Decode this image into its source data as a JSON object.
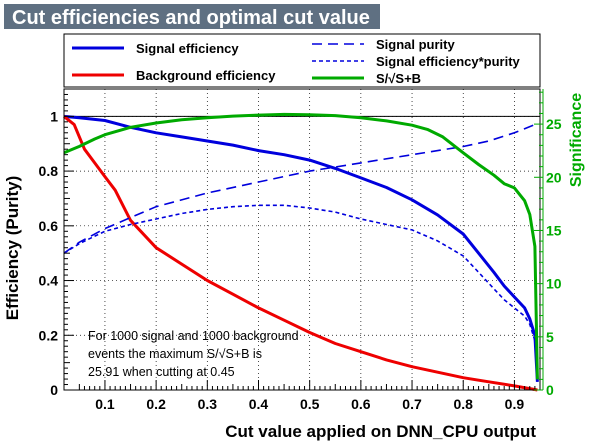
{
  "chart_data": {
    "type": "line",
    "title": "Cut efficiencies and optimal cut value",
    "xlabel": "Cut value applied on DNN_CPU output",
    "ylabel": "Efficiency (Purity)",
    "y2label": "Significance",
    "xlim": [
      0.02,
      0.95
    ],
    "ylim": [
      0,
      1.1
    ],
    "y2lim": [
      0,
      28.3
    ],
    "grid": true,
    "x_ticks": [
      0.1,
      0.2,
      0.3,
      0.4,
      0.5,
      0.6,
      0.7,
      0.8,
      0.9
    ],
    "x_tick_labels": [
      "0.1",
      "0.2",
      "0.3",
      "0.4",
      "0.5",
      "0.6",
      "0.7",
      "0.8",
      "0.9"
    ],
    "y_ticks": [
      0,
      0.2,
      0.4,
      0.6,
      0.8,
      1
    ],
    "y_tick_labels": [
      "0",
      "0.2",
      "0.4",
      "0.6",
      "0.8",
      "1"
    ],
    "y2_ticks": [
      0,
      5,
      10,
      15,
      20,
      25
    ],
    "y2_tick_labels": [
      "0",
      "5",
      "10",
      "15",
      "20",
      "25"
    ],
    "legend_placement": "top",
    "series": [
      {
        "name": "Signal efficiency",
        "axis": "left",
        "color": "#0000dd",
        "dash": "solid",
        "x": [
          0.02,
          0.05,
          0.1,
          0.15,
          0.2,
          0.25,
          0.3,
          0.35,
          0.4,
          0.45,
          0.5,
          0.55,
          0.6,
          0.65,
          0.7,
          0.75,
          0.8,
          0.83,
          0.86,
          0.88,
          0.9,
          0.92,
          0.93,
          0.94,
          0.945
        ],
        "y": [
          1.0,
          0.995,
          0.985,
          0.96,
          0.94,
          0.925,
          0.91,
          0.895,
          0.875,
          0.86,
          0.84,
          0.81,
          0.775,
          0.74,
          0.695,
          0.64,
          0.57,
          0.5,
          0.43,
          0.38,
          0.34,
          0.3,
          0.26,
          0.2,
          0.03
        ]
      },
      {
        "name": "Background efficiency",
        "axis": "left",
        "color": "#ee0000",
        "dash": "solid",
        "x": [
          0.02,
          0.04,
          0.06,
          0.08,
          0.1,
          0.12,
          0.15,
          0.2,
          0.25,
          0.3,
          0.35,
          0.4,
          0.45,
          0.5,
          0.55,
          0.6,
          0.65,
          0.7,
          0.75,
          0.8,
          0.85,
          0.9,
          0.93,
          0.945
        ],
        "y": [
          1.0,
          0.97,
          0.88,
          0.83,
          0.78,
          0.73,
          0.62,
          0.52,
          0.46,
          0.4,
          0.35,
          0.3,
          0.255,
          0.21,
          0.17,
          0.14,
          0.11,
          0.085,
          0.065,
          0.045,
          0.03,
          0.015,
          0.005,
          0.0
        ]
      },
      {
        "name": "Signal purity",
        "axis": "left",
        "color": "#0000dd",
        "dash": "long",
        "x": [
          0.02,
          0.05,
          0.1,
          0.15,
          0.2,
          0.3,
          0.4,
          0.5,
          0.6,
          0.7,
          0.8,
          0.85,
          0.9,
          0.92,
          0.94,
          0.945
        ],
        "y": [
          0.5,
          0.54,
          0.59,
          0.63,
          0.67,
          0.72,
          0.76,
          0.8,
          0.83,
          0.86,
          0.89,
          0.91,
          0.94,
          0.955,
          0.97,
          0.98
        ]
      },
      {
        "name": "Signal efficiency*purity",
        "axis": "left",
        "color": "#0000dd",
        "dash": "short",
        "x": [
          0.02,
          0.05,
          0.1,
          0.15,
          0.2,
          0.25,
          0.3,
          0.35,
          0.4,
          0.45,
          0.5,
          0.55,
          0.6,
          0.65,
          0.7,
          0.75,
          0.8,
          0.83,
          0.86,
          0.88,
          0.9,
          0.92,
          0.93,
          0.94,
          0.945
        ],
        "y": [
          0.5,
          0.535,
          0.58,
          0.605,
          0.625,
          0.645,
          0.66,
          0.67,
          0.675,
          0.675,
          0.665,
          0.65,
          0.625,
          0.605,
          0.585,
          0.545,
          0.49,
          0.43,
          0.37,
          0.33,
          0.3,
          0.27,
          0.24,
          0.18,
          0.03
        ]
      },
      {
        "name": "S/√S+B",
        "axis": "right",
        "color": "#00aa00",
        "dash": "solid",
        "x": [
          0.02,
          0.05,
          0.08,
          0.1,
          0.15,
          0.2,
          0.25,
          0.3,
          0.35,
          0.4,
          0.45,
          0.5,
          0.55,
          0.6,
          0.65,
          0.7,
          0.73,
          0.76,
          0.8,
          0.83,
          0.86,
          0.88,
          0.9,
          0.92,
          0.93,
          0.94,
          0.945
        ],
        "y": [
          22.3,
          22.9,
          23.6,
          24.0,
          24.7,
          25.1,
          25.4,
          25.6,
          25.75,
          25.85,
          25.91,
          25.88,
          25.8,
          25.6,
          25.3,
          24.9,
          24.5,
          23.8,
          22.3,
          21.2,
          20.2,
          19.4,
          19.0,
          17.8,
          16.5,
          13.5,
          1.0
        ]
      }
    ],
    "annotation": {
      "lines": [
        "For 1000 signal and 1000 background",
        "events the maximum S/√S+B is",
        "25.91 when cutting at  0.45"
      ]
    }
  }
}
